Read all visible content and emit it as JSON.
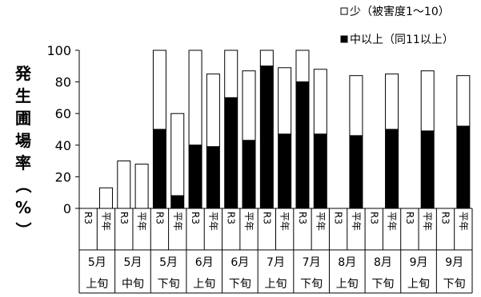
{
  "chart_data": {
    "type": "bar",
    "stacked": true,
    "ylabel": "発生圃場率（%）",
    "ylim": [
      0,
      100
    ],
    "yticks": [
      0,
      20,
      40,
      60,
      80,
      100
    ],
    "grid": false,
    "legend_position": "top-right",
    "colors": {
      "light": "#ffffff",
      "heavy": "#000000"
    },
    "series": [
      {
        "name": "少（被害度1～10）",
        "key": "light"
      },
      {
        "name": "中以上（同11以上）",
        "key": "heavy"
      }
    ],
    "groups": [
      {
        "label": [
          "5月",
          "上旬"
        ],
        "bars": [
          {
            "sub": "R3",
            "heavy": 0,
            "total": 0
          },
          {
            "sub": "平年",
            "heavy": 0,
            "total": 13
          }
        ]
      },
      {
        "label": [
          "5月",
          "中旬"
        ],
        "bars": [
          {
            "sub": "R3",
            "heavy": 0,
            "total": 30
          },
          {
            "sub": "平年",
            "heavy": 0,
            "total": 28
          }
        ]
      },
      {
        "label": [
          "5月",
          "下旬"
        ],
        "bars": [
          {
            "sub": "R3",
            "heavy": 50,
            "total": 100
          },
          {
            "sub": "平年",
            "heavy": 8,
            "total": 60
          }
        ]
      },
      {
        "label": [
          "6月",
          "上旬"
        ],
        "bars": [
          {
            "sub": "R3",
            "heavy": 40,
            "total": 100
          },
          {
            "sub": "平年",
            "heavy": 39,
            "total": 85
          }
        ]
      },
      {
        "label": [
          "6月",
          "下旬"
        ],
        "bars": [
          {
            "sub": "R3",
            "heavy": 70,
            "total": 100
          },
          {
            "sub": "平年",
            "heavy": 43,
            "total": 87
          }
        ]
      },
      {
        "label": [
          "7月",
          "上旬"
        ],
        "bars": [
          {
            "sub": "R3",
            "heavy": 90,
            "total": 100
          },
          {
            "sub": "平年",
            "heavy": 47,
            "total": 89
          }
        ]
      },
      {
        "label": [
          "7月",
          "下旬"
        ],
        "bars": [
          {
            "sub": "R3",
            "heavy": 80,
            "total": 100
          },
          {
            "sub": "平年",
            "heavy": 47,
            "total": 88
          }
        ]
      },
      {
        "label": [
          "8月",
          "上旬"
        ],
        "bars": [
          {
            "sub": "R3",
            "heavy": 0,
            "total": 0
          },
          {
            "sub": "平年",
            "heavy": 46,
            "total": 84
          }
        ]
      },
      {
        "label": [
          "8月",
          "下旬"
        ],
        "bars": [
          {
            "sub": "R3",
            "heavy": 0,
            "total": 0
          },
          {
            "sub": "平年",
            "heavy": 50,
            "total": 85
          }
        ]
      },
      {
        "label": [
          "9月",
          "上旬"
        ],
        "bars": [
          {
            "sub": "R3",
            "heavy": 0,
            "total": 0
          },
          {
            "sub": "平年",
            "heavy": 49,
            "total": 87
          }
        ]
      },
      {
        "label": [
          "9月",
          "下旬"
        ],
        "bars": [
          {
            "sub": "R3",
            "heavy": 0,
            "total": 0
          },
          {
            "sub": "平年",
            "heavy": 52,
            "total": 84
          }
        ]
      }
    ]
  }
}
